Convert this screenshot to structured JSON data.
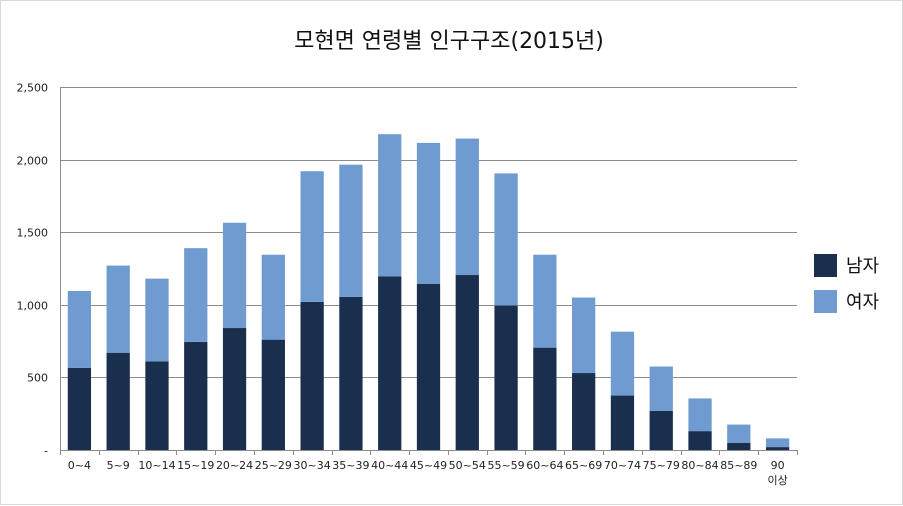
{
  "chart_data": {
    "type": "bar",
    "stacked": true,
    "title": "모현면 연령별 인구구조(2015년)",
    "categories": [
      "0~4",
      "5~9",
      "10~14",
      "15~19",
      "20~24",
      "25~29",
      "30~34",
      "35~39",
      "40~44",
      "45~49",
      "50~54",
      "55~59",
      "60~64",
      "65~69",
      "70~74",
      "75~79",
      "80~84",
      "85~89",
      "90 이상"
    ],
    "series": [
      {
        "name": "남자",
        "color": "#1a2f4d",
        "values": [
          565,
          670,
          610,
          745,
          840,
          760,
          1020,
          1055,
          1195,
          1145,
          1205,
          995,
          705,
          530,
          375,
          270,
          130,
          50,
          20
        ]
      },
      {
        "name": "여자",
        "color": "#6f9bd1",
        "values": [
          530,
          600,
          570,
          645,
          725,
          585,
          900,
          910,
          980,
          970,
          940,
          910,
          640,
          520,
          440,
          305,
          225,
          125,
          60
        ]
      }
    ],
    "ylim": [
      0,
      2500
    ],
    "yticks": [
      0,
      500,
      1000,
      1500,
      2000,
      2500
    ],
    "ytick_labels": [
      "-",
      "500",
      "1,000",
      "1,500",
      "2,000",
      "2,500"
    ],
    "grid": true,
    "legend_position": "right"
  }
}
